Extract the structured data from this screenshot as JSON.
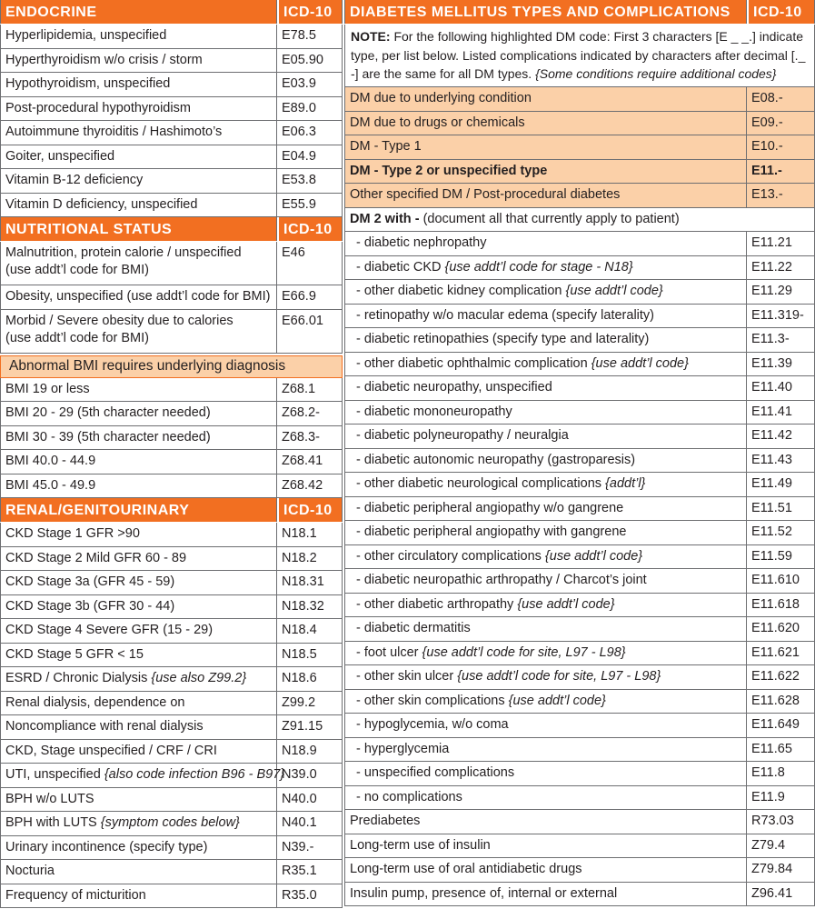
{
  "endocrine": {
    "title": "ENDOCRINE",
    "code_header": "ICD-10",
    "rows": [
      {
        "label": "Hyperlipidemia, unspecified",
        "code": "E78.5"
      },
      {
        "label": "Hyperthyroidism w/o crisis / storm",
        "code": "E05.90"
      },
      {
        "label": "Hypothyroidism, unspecified",
        "code": "E03.9"
      },
      {
        "label": "Post-procedural hypothyroidism",
        "code": "E89.0"
      },
      {
        "label": "Autoimmune thyroiditis / Hashimoto’s",
        "code": "E06.3"
      },
      {
        "label": "Goiter, unspecified",
        "code": "E04.9"
      },
      {
        "label": "Vitamin B-12 deficiency",
        "code": "E53.8"
      },
      {
        "label": "Vitamin D deficiency, unspecified",
        "code": "E55.9"
      }
    ]
  },
  "nutritional": {
    "title": "NUTRITIONAL STATUS",
    "code_header": "ICD-10",
    "rows": [
      {
        "label_lines": [
          "Malnutrition, protein calorie / unspecified",
          "(use addt’l code for BMI)"
        ],
        "code": "E46"
      },
      {
        "label": "Obesity, unspecified (use addt’l code for BMI)",
        "code": "E66.9"
      },
      {
        "label_lines": [
          "Morbid / Severe obesity due to calories",
          "(use addt’l code for BMI)"
        ],
        "code": "E66.01"
      }
    ]
  },
  "bmi": {
    "banner": "Abnormal BMI requires underlying diagnosis",
    "rows": [
      {
        "label": "BMI 19 or less",
        "code": "Z68.1"
      },
      {
        "label": "BMI 20 - 29 (5th character needed)",
        "code": "Z68.2-"
      },
      {
        "label": "BMI 30 - 39 (5th character needed)",
        "code": "Z68.3-"
      },
      {
        "label": "BMI 40.0 - 44.9",
        "code": "Z68.41"
      },
      {
        "label": "BMI 45.0 - 49.9",
        "code": "Z68.42"
      }
    ]
  },
  "renal": {
    "title": "RENAL/GENITOURINARY",
    "code_header": "ICD-10",
    "rows": [
      {
        "label": "CKD Stage 1 GFR >90",
        "code": "N18.1"
      },
      {
        "label": "CKD Stage 2 Mild GFR 60 - 89",
        "code": "N18.2"
      },
      {
        "label": "CKD Stage 3a (GFR 45 - 59)",
        "code": "N18.31"
      },
      {
        "label": "CKD Stage 3b (GFR 30 - 44)",
        "code": "N18.32"
      },
      {
        "label": "CKD Stage 4 Severe GFR (15 - 29)",
        "code": "N18.4"
      },
      {
        "label": "CKD Stage 5 GFR < 15",
        "code": "N18.5"
      },
      {
        "label": "ESRD / Chronic Dialysis",
        "note": "{use also Z99.2}",
        "code": "N18.6"
      },
      {
        "label": "Renal dialysis, dependence on",
        "code": "Z99.2"
      },
      {
        "label": "Noncompliance with renal dialysis",
        "code": "Z91.15"
      },
      {
        "label": "CKD, Stage unspecified / CRF / CRI",
        "code": "N18.9"
      },
      {
        "label": "UTI, unspecified",
        "note": "{also code infection B96 - B97}",
        "code": "N39.0"
      },
      {
        "label": "BPH w/o LUTS",
        "code": "N40.0"
      },
      {
        "label": "BPH with LUTS",
        "note": "{symptom codes below}",
        "code": "N40.1"
      },
      {
        "label": "Urinary incontinence (specify type)",
        "code": "N39.-"
      },
      {
        "label": "Nocturia",
        "code": "R35.1"
      },
      {
        "label": "Frequency of micturition",
        "code": "R35.0"
      }
    ]
  },
  "diabetes": {
    "title": "DIABETES MELLITUS TYPES AND COMPLICATIONS",
    "code_header": "ICD-10",
    "note": {
      "lead": "NOTE:",
      "text": "For the following highlighted DM code: First 3 characters [E _ _.] indicate type, per list below. Listed complications indicated by characters after decimal [._ -] are the same for all DM types.",
      "italic": "{Some conditions require additional codes}"
    },
    "types": [
      {
        "label": "DM due to underlying condition",
        "code": "E08.-"
      },
      {
        "label": "DM due to drugs or chemicals",
        "code": "E09.-"
      },
      {
        "label": "DM - Type 1",
        "code": "E10.-"
      },
      {
        "label": "DM - Type 2 or unspecified type",
        "code": "E11.-"
      },
      {
        "label": "Other specified DM / Post-procedural diabetes",
        "code": "E13.-"
      }
    ],
    "dm2_with": {
      "lead": "DM 2 with -",
      "text": "(document all that currently apply to patient)"
    },
    "complications": [
      {
        "label": "- diabetic nephropathy",
        "code": "E11.21"
      },
      {
        "label": "- diabetic CKD",
        "note": "{use addt’l code for stage - N18}",
        "code": "E11.22"
      },
      {
        "label": "- other diabetic kidney complication",
        "note": "{use addt’l code}",
        "code": "E11.29"
      },
      {
        "label": "- retinopathy w/o macular edema (specify laterality)",
        "code": "E11.319-"
      },
      {
        "label": "- diabetic retinopathies (specify type and laterality)",
        "code": "E11.3-"
      },
      {
        "label": "- other diabetic ophthalmic complication",
        "note": "{use addt’l code}",
        "code": "E11.39"
      },
      {
        "label": "- diabetic neuropathy, unspecified",
        "code": "E11.40"
      },
      {
        "label": "- diabetic mononeuropathy",
        "code": "E11.41"
      },
      {
        "label": "- diabetic polyneuropathy / neuralgia",
        "code": "E11.42"
      },
      {
        "label": "- diabetic autonomic neuropathy (gastroparesis)",
        "code": "E11.43"
      },
      {
        "label": "- other diabetic neurological complications",
        "note": "{addt’l}",
        "code": "E11.49"
      },
      {
        "label": "- diabetic peripheral angiopathy w/o gangrene",
        "code": "E11.51"
      },
      {
        "label": "- diabetic peripheral angiopathy with gangrene",
        "code": "E11.52"
      },
      {
        "label": "- other circulatory complications",
        "note": "{use addt’l code}",
        "code": "E11.59"
      },
      {
        "label": "- diabetic neuropathic arthropathy / Charcot’s joint",
        "code": "E11.610"
      },
      {
        "label": "- other diabetic arthropathy",
        "note": "{use addt’l code}",
        "code": "E11.618"
      },
      {
        "label": "- diabetic dermatitis",
        "code": "E11.620"
      },
      {
        "label": "- foot ulcer",
        "note": "{use addt’l code for site, L97 - L98}",
        "code": "E11.621"
      },
      {
        "label": "- other skin ulcer",
        "note": "{use addt’l code for site, L97 - L98}",
        "code": "E11.622"
      },
      {
        "label": "- other skin complications",
        "note": "{use addt’l code}",
        "code": "E11.628"
      },
      {
        "label": "- hypoglycemia, w/o coma",
        "code": "E11.649"
      },
      {
        "label": "- hyperglycemia",
        "code": "E11.65"
      },
      {
        "label": "- unspecified complications",
        "code": "E11.8"
      },
      {
        "label": "- no complications",
        "code": "E11.9"
      }
    ],
    "other": [
      {
        "label": "Prediabetes",
        "code": "R73.03"
      },
      {
        "label": "Long-term use of insulin",
        "code": "Z79.4"
      },
      {
        "label": "Long-term use of oral antidiabetic drugs",
        "code": "Z79.84"
      },
      {
        "label": "Insulin pump, presence of, internal or external",
        "code": "Z96.41"
      }
    ]
  }
}
